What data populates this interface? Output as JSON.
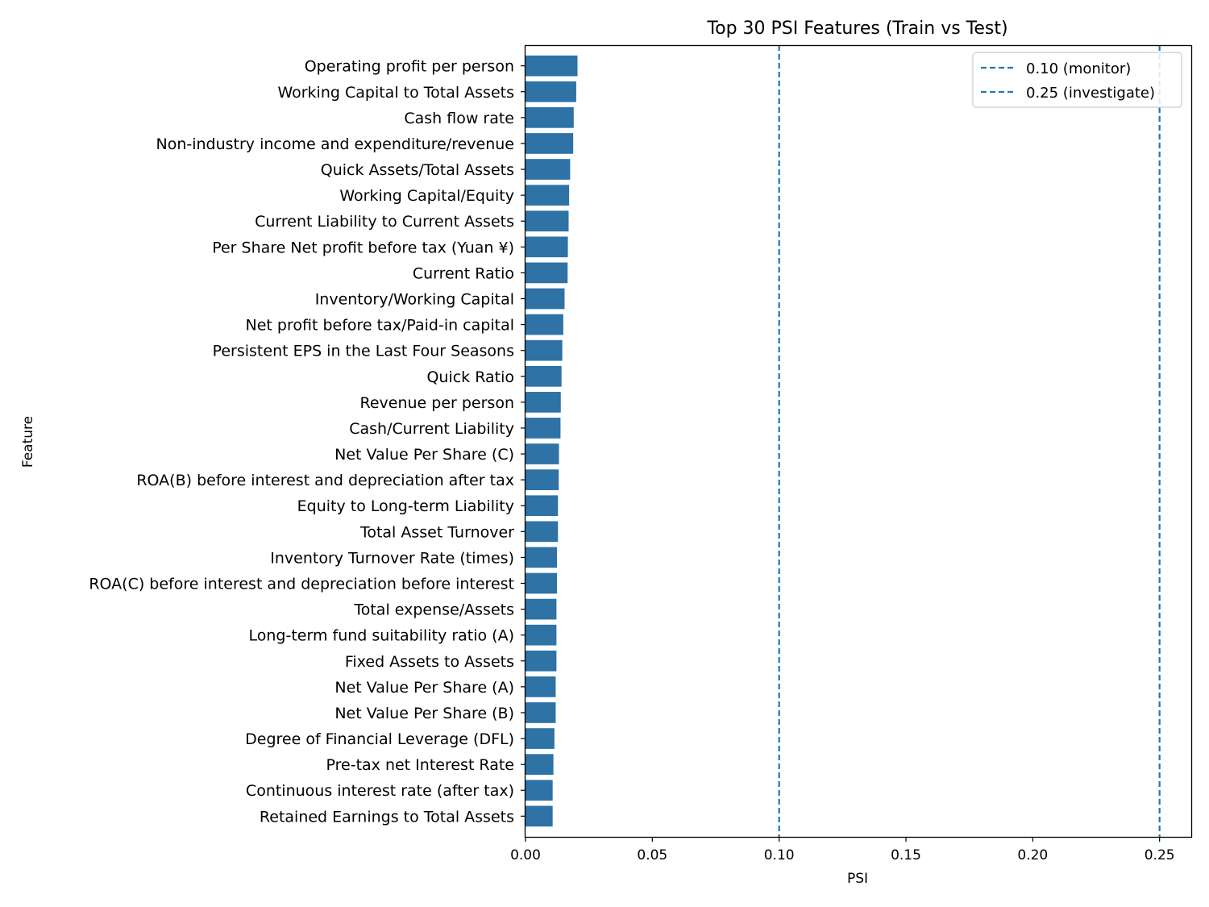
{
  "chart_data": {
    "type": "bar",
    "orientation": "horizontal",
    "title": "Top 30 PSI Features (Train vs Test)",
    "xlabel": "PSI",
    "ylabel": "Feature",
    "xlim": [
      0,
      0.2625
    ],
    "xticks": [
      "0.00",
      "0.05",
      "0.10",
      "0.15",
      "0.20",
      "0.25"
    ],
    "bar_color": "#2e72a6",
    "grid": false,
    "legend_position": "top-right",
    "categories": [
      "Operating profit per person",
      "Working Capital to Total Assets",
      "Cash flow rate",
      "Non-industry income and expenditure/revenue",
      "Quick Assets/Total Assets",
      "Working Capital/Equity",
      "Current Liability to Current Assets",
      "Per Share Net profit before tax (Yuan ¥)",
      "Current Ratio",
      "Inventory/Working Capital",
      "Net profit before tax/Paid-in capital",
      "Persistent EPS in the Last Four Seasons",
      "Quick Ratio",
      "Revenue per person",
      "Cash/Current Liability",
      "Net Value Per Share (C)",
      "ROA(B) before interest and depreciation after tax",
      "Equity to Long-term Liability",
      "Total Asset Turnover",
      "Inventory Turnover Rate (times)",
      "ROA(C) before interest and depreciation before interest",
      "Total expense/Assets",
      "Long-term fund suitability ratio (A)",
      "Fixed Assets to Assets",
      "Net Value Per Share (A)",
      "Net Value Per Share (B)",
      "Degree of Financial Leverage (DFL)",
      "Pre-tax net Interest Rate",
      "Continuous interest rate (after tax)",
      "Retained Earnings to Total Assets"
    ],
    "values": [
      0.0205,
      0.02,
      0.019,
      0.0188,
      0.0176,
      0.0172,
      0.017,
      0.0167,
      0.0166,
      0.0154,
      0.0149,
      0.0145,
      0.0142,
      0.0139,
      0.0138,
      0.0132,
      0.0131,
      0.0128,
      0.0128,
      0.0124,
      0.0124,
      0.0122,
      0.0122,
      0.0122,
      0.0119,
      0.0119,
      0.0114,
      0.011,
      0.0107,
      0.0107
    ],
    "reference_lines": [
      {
        "value": 0.1,
        "label": "0.10 (monitor)",
        "color": "#1f77b4"
      },
      {
        "value": 0.25,
        "label": "0.25 (investigate)",
        "color": "#1f77b4"
      }
    ]
  }
}
